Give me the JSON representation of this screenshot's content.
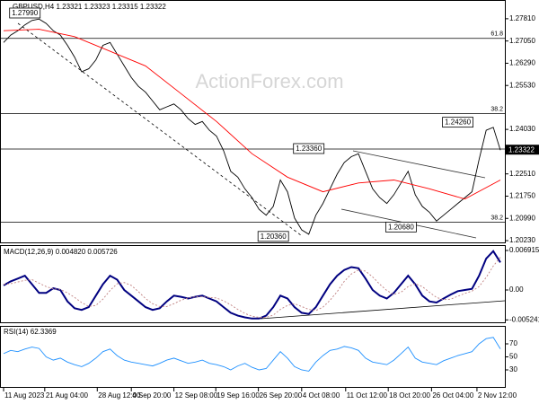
{
  "chart_data": [
    {
      "type": "line",
      "title": "GBPUSD,H4 1.23321 1.23323 1.23315 1.23322",
      "watermark": "ActionForex.com",
      "x": [
        0,
        1,
        2,
        3,
        4,
        5,
        6,
        7,
        8,
        9,
        10,
        11,
        12,
        13,
        14,
        15,
        16,
        17,
        18,
        19,
        20,
        21,
        22,
        23,
        24,
        25,
        26,
        27,
        28,
        29,
        30,
        31,
        32,
        33,
        34,
        35,
        36,
        37,
        38,
        39,
        40,
        41,
        42,
        43,
        44,
        45,
        46,
        47,
        48,
        49,
        50,
        51,
        52,
        53,
        54,
        55,
        56,
        57,
        58,
        59,
        60,
        61,
        62,
        63,
        64,
        65,
        66,
        67,
        68,
        69,
        70
      ],
      "xlim": [
        0,
        70
      ],
      "ylim": [
        1.2017,
        1.2845
      ],
      "yticks": [
        {
          "value": 1.2781,
          "label": "1.27810"
        },
        {
          "value": 1.2705,
          "label": "1.27050"
        },
        {
          "value": 1.2629,
          "label": "1.26290"
        },
        {
          "value": 1.2553,
          "label": "1.25530"
        },
        {
          "value": 1.2403,
          "label": "1.24030"
        },
        {
          "value": 1.2251,
          "label": "1.22510"
        },
        {
          "value": 1.2175,
          "label": "1.21750"
        },
        {
          "value": 1.2099,
          "label": "1.20990"
        },
        {
          "value": 1.2023,
          "label": "1.20230"
        }
      ],
      "last": 1.23322,
      "series": [
        {
          "color": "#000000",
          "values": [
            1.27,
            1.2725,
            1.274,
            1.276,
            1.2775,
            1.278,
            1.2765,
            1.274,
            1.2725,
            1.269,
            1.265,
            1.26,
            1.261,
            1.264,
            1.269,
            1.27,
            1.266,
            1.262,
            1.258,
            1.255,
            1.253,
            1.25,
            1.247,
            1.248,
            1.249,
            1.247,
            1.244,
            1.242,
            1.243,
            1.24,
            1.238,
            1.233,
            1.226,
            1.224,
            1.22,
            1.217,
            1.213,
            1.211,
            1.214,
            1.223,
            1.219,
            1.21,
            1.206,
            1.2045,
            1.211,
            1.215,
            1.22,
            1.225,
            1.229,
            1.231,
            1.232,
            1.226,
            1.22,
            1.217,
            1.215,
            1.218,
            1.222,
            1.226,
            1.218,
            1.214,
            1.212,
            1.209,
            1.211,
            1.213,
            1.215,
            1.217,
            1.219,
            1.23,
            1.24,
            1.241,
            1.23322
          ]
        },
        {
          "color": "#ff0000",
          "x": [
            0,
            5,
            10,
            15,
            20,
            25,
            30,
            35,
            40,
            45,
            50,
            55,
            60,
            65,
            70
          ],
          "values": [
            1.274,
            1.2745,
            1.272,
            1.267,
            1.262,
            1.2525,
            1.243,
            1.232,
            1.224,
            1.219,
            1.222,
            1.223,
            1.22,
            1.2165,
            1.223
          ]
        }
      ],
      "levels": [
        {
          "price": 1.2714,
          "text": "61.8"
        },
        {
          "price": 1.2457,
          "text": "38.2"
        },
        {
          "price": 1.2336
        },
        {
          "price": 1.2086,
          "text": "38.2"
        }
      ],
      "annotations": [
        {
          "x": 3,
          "value": 1.2799,
          "label": "1.27990"
        },
        {
          "x": 43,
          "value": 1.2336,
          "label": "1.23360"
        },
        {
          "x": 64,
          "value": 1.2426,
          "label": "1.24260"
        },
        {
          "x": 38,
          "value": 1.2036,
          "label": "1.20360"
        },
        {
          "x": 56,
          "value": 1.2068,
          "label": "1.20680"
        }
      ]
    },
    {
      "type": "line",
      "title": "MACD(12,26,9) 0.004820 0.005726",
      "ylim": [
        -0.00582,
        0.00786
      ],
      "yticks": [
        0.006915,
        {
          "value": 0,
          "label": "0.00"
        },
        -0.005241
      ],
      "series": [
        {
          "color": "#000080",
          "values": [
            0.0008,
            0.0015,
            0.002,
            0.0025,
            0.001,
            -0.0005,
            -0.0005,
            0.0003,
            0,
            -0.002,
            -0.0032,
            -0.0035,
            -0.003,
            -0.001,
            0.001,
            0.0025,
            0.0018,
            0,
            -0.001,
            -0.002,
            -0.003,
            -0.0035,
            -0.0032,
            -0.002,
            -0.001,
            -0.0012,
            -0.0015,
            -0.0012,
            -0.001,
            -0.0015,
            -0.002,
            -0.003,
            -0.004,
            -0.0045,
            -0.0048,
            -0.005,
            -0.005,
            -0.0045,
            -0.003,
            -0.001,
            -0.0015,
            -0.003,
            -0.004,
            -0.0042,
            -0.003,
            -0.001,
            0.001,
            0.0025,
            0.0035,
            0.004,
            0.0038,
            0.002,
            0,
            -0.001,
            -0.0015,
            -0.0005,
            0.001,
            0.0025,
            0.001,
            -0.001,
            -0.002,
            -0.0022,
            -0.0015,
            -0.0008,
            -0.0002,
            0,
            0.0002,
            0.0025,
            0.0055,
            0.0068,
            0.00482
          ]
        },
        {
          "color": "#c08080",
          "dashed": true,
          "values": [
            0.001,
            0.0011,
            0.0014,
            0.0017,
            0.0018,
            0.0012,
            0.0006,
            0.0002,
            0.0001,
            -0.0005,
            -0.0013,
            -0.0022,
            -0.0029,
            -0.0027,
            -0.0016,
            -0.0001,
            0.0011,
            0.0013,
            0.0008,
            -0.0003,
            -0.0015,
            -0.0024,
            -0.0029,
            -0.0029,
            -0.0024,
            -0.0018,
            -0.0014,
            -0.0012,
            -0.0012,
            -0.0013,
            -0.0014,
            -0.0019,
            -0.0026,
            -0.0034,
            -0.0041,
            -0.0046,
            -0.0048,
            -0.0048,
            -0.0044,
            -0.0034,
            -0.0027,
            -0.0024,
            -0.0029,
            -0.0034,
            -0.0036,
            -0.003,
            -0.0018,
            -0.0003,
            0.0015,
            0.0028,
            0.0035,
            0.0033,
            0.0023,
            0.001,
            -0.0001,
            -0.0008,
            -0.0004,
            0.0006,
            0.0011,
            0.0006,
            -0.0004,
            -0.0013,
            -0.0017,
            -0.0016,
            -0.0011,
            -0.0006,
            -0.0002,
            0.0006,
            0.0022,
            0.0042,
            0.005726
          ]
        }
      ]
    },
    {
      "type": "line",
      "title": "RSI(14) 62.3369",
      "ylim": [
        2.4,
        97.6
      ],
      "yticks": [
        70,
        50,
        30
      ],
      "series": [
        {
          "color": "#1e90ff",
          "values": [
            55,
            60,
            58,
            62,
            65,
            63,
            50,
            45,
            48,
            42,
            38,
            35,
            40,
            48,
            58,
            62,
            52,
            45,
            42,
            40,
            38,
            36,
            40,
            45,
            48,
            44,
            40,
            42,
            45,
            40,
            38,
            35,
            30,
            36,
            40,
            34,
            30,
            32,
            45,
            58,
            48,
            35,
            30,
            28,
            42,
            52,
            60,
            62,
            66,
            64,
            60,
            48,
            42,
            40,
            38,
            45,
            55,
            65,
            48,
            42,
            40,
            38,
            44,
            48,
            52,
            55,
            58,
            70,
            78,
            80,
            62.3369
          ]
        }
      ],
      "xticks": [
        {
          "value": 0,
          "label": "11 Aug 2023"
        },
        {
          "value": 5.8,
          "label": "21 Aug 04:00"
        },
        {
          "value": 13.2,
          "label": "28 Aug 12:00"
        },
        {
          "value": 18,
          "label": "4 Sep 20:00"
        },
        {
          "value": 24,
          "label": "12 Sep 08:00"
        },
        {
          "value": 29.9,
          "label": "19 Sep 16:00"
        },
        {
          "value": 35.9,
          "label": "26 Sep 20:00"
        },
        {
          "value": 42,
          "label": "4 Oct 08:00"
        },
        {
          "value": 48.2,
          "label": "11 Oct 12:00"
        },
        {
          "value": 54.2,
          "label": "18 Oct 20:00"
        },
        {
          "value": 60.3,
          "label": "26 Oct 04:00"
        },
        {
          "value": 66.7,
          "label": "2 Nov 12:00"
        }
      ]
    }
  ]
}
